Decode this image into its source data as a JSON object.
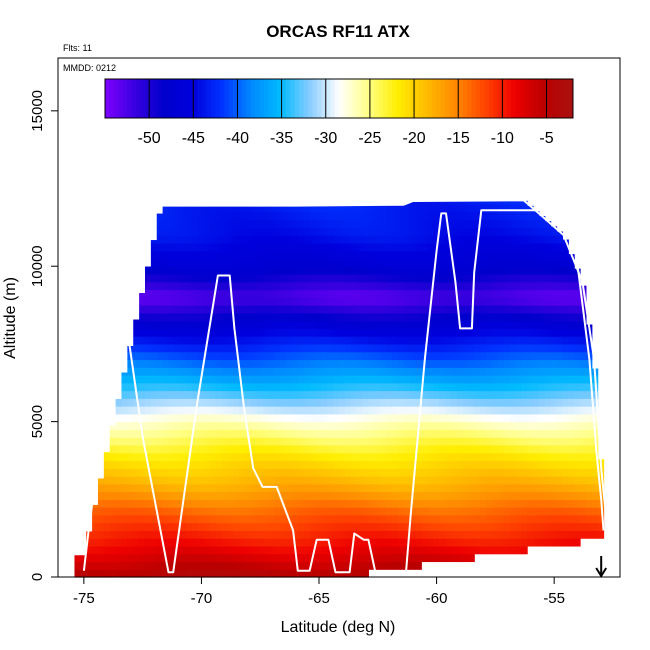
{
  "chart_data": {
    "type": "heatmap",
    "title": "ORCAS RF11 ATX",
    "flights_note": "Flts: 11",
    "date_note": "MMDD: 0212",
    "xlabel": "Latitude (deg N)",
    "ylabel": "Altitude (m)",
    "xlim": [
      -76.1,
      -52.2
    ],
    "ylim": [
      0,
      16700
    ],
    "x_ticks": [
      -75,
      -70,
      -65,
      -60,
      -55
    ],
    "x_tick_labels": [
      "-75",
      "-70",
      "-65",
      "-60",
      "-55"
    ],
    "y_ticks": [
      0,
      5000,
      10000,
      15000
    ],
    "y_tick_labels": [
      "0",
      "5000",
      "10000",
      "15000"
    ],
    "colorbar": {
      "range": [
        -55,
        -2
      ],
      "ticks": [
        -50,
        -45,
        -40,
        -35,
        -30,
        -25,
        -20,
        -15,
        -10,
        -5
      ],
      "tick_labels": [
        "-50",
        "-45",
        "-40",
        "-35",
        "-30",
        "-25",
        "-20",
        "-15",
        "-10",
        "-5"
      ],
      "colors": [
        "#7f00ff",
        "#3a00e0",
        "#0000cc",
        "#0000dd",
        "#0033ff",
        "#0088ff",
        "#00bbff",
        "#88ccff",
        "#ffffff",
        "#ffff88",
        "#ffee00",
        "#ffbb00",
        "#ff8800",
        "#ff4400",
        "#ee0000",
        "#bb0000",
        "#aa1111"
      ]
    },
    "temperature_profile": {
      "altitude_m": [
        0,
        1000,
        2000,
        3000,
        4000,
        5000,
        6000,
        7000,
        8000,
        9000,
        10000,
        11000,
        12000
      ],
      "temperature_c": [
        -4,
        -9,
        -13,
        -18,
        -22,
        -27,
        -34,
        -40,
        -46,
        -53,
        -47,
        -44,
        -43
      ]
    },
    "series": [
      {
        "type": "flight-track",
        "x": [
          -75.0,
          -74.8,
          -73.6,
          -73.2,
          -72.5,
          -71.4,
          -71.2,
          -70.2,
          -69.3,
          -68.8,
          -68.6,
          -68.2,
          -67.8,
          -67.4,
          -66.8,
          -66.1,
          -65.9,
          -65.4,
          -65.1,
          -64.6,
          -64.3,
          -63.7,
          -63.5,
          -63.1,
          -62.9,
          -62.6,
          -62.1,
          -61.3,
          -61.1,
          -60.5,
          -60.0,
          -59.8,
          -59.6,
          -59.2,
          -59.0,
          -58.9,
          -58.5,
          -58.4,
          -58.1,
          -57.9,
          -57.6,
          -57.0,
          -56.3,
          -55.6,
          -54.8,
          -54.4,
          -54.0,
          -53.5,
          -53.2,
          -53.0,
          -52.9
        ],
        "y": [
          200,
          1500,
          8200,
          8200,
          4500,
          150,
          150,
          5500,
          9700,
          9700,
          8000,
          5500,
          3500,
          2900,
          2900,
          1500,
          200,
          200,
          1200,
          1200,
          150,
          150,
          1400,
          1200,
          1200,
          150,
          150,
          150,
          2000,
          7000,
          10500,
          11700,
          11700,
          9500,
          8000,
          8000,
          8000,
          9800,
          11800,
          11800,
          11800,
          11800,
          11800,
          11800,
          11800,
          11800,
          10000,
          7000,
          4000,
          2500,
          1500
        ]
      },
      {
        "type": "top-boundary",
        "x": [
          -71.7,
          -66.0,
          -61.4,
          -61.0,
          -56.3,
          -55.8,
          -54.6,
          -53.8,
          -53.3,
          -53.0,
          -52.8
        ],
        "y": [
          11950,
          11950,
          11980,
          12100,
          12120,
          11800,
          11000,
          9500,
          7000,
          3500,
          2000
        ]
      }
    ],
    "marker": {
      "x": -53.0,
      "symbol": "down-arrow"
    }
  }
}
